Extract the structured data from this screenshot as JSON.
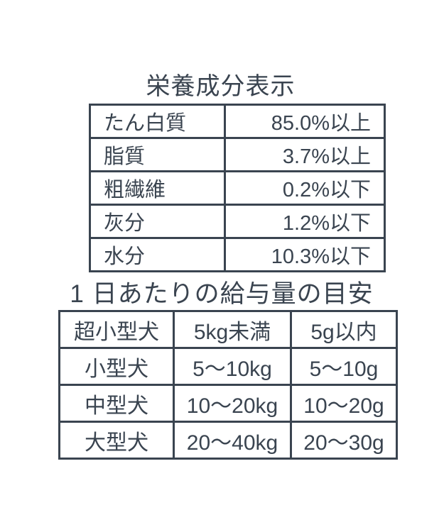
{
  "page": {
    "background_color": "#ffffff",
    "text_color": "#3a4450",
    "border_color": "#3a4450"
  },
  "nutrition": {
    "title": "栄養成分表示",
    "rows": [
      {
        "label": "たん白質",
        "value": "85.0%以上"
      },
      {
        "label": "脂質",
        "value": "3.7%以上"
      },
      {
        "label": "粗繊維",
        "value": "0.2%以下"
      },
      {
        "label": "灰分",
        "value": "1.2%以下"
      },
      {
        "label": "水分",
        "value": "10.3%以下"
      }
    ]
  },
  "feeding": {
    "title": "1 日あたりの給与量の目安",
    "rows": [
      {
        "dog_type": "超小型犬",
        "weight": "5kg未満",
        "amount": "5g以内"
      },
      {
        "dog_type": "小型犬",
        "weight": "5〜10kg",
        "amount": "5〜10g"
      },
      {
        "dog_type": "中型犬",
        "weight": "10〜20kg",
        "amount": "10〜20g"
      },
      {
        "dog_type": "大型犬",
        "weight": "20〜40kg",
        "amount": "20〜30g"
      }
    ]
  }
}
